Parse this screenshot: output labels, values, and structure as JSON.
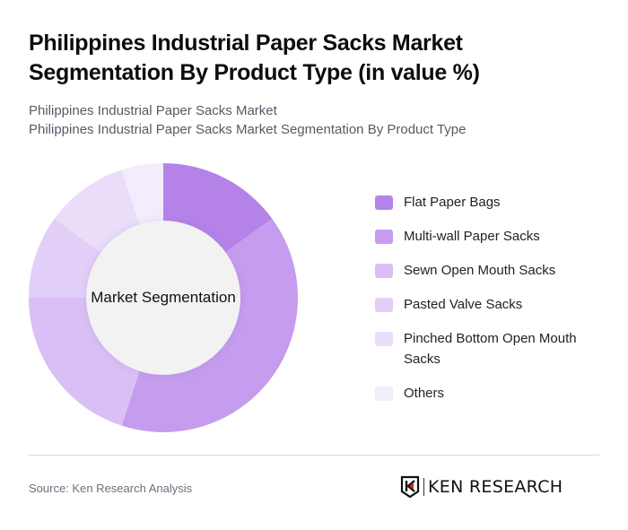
{
  "header": {
    "title": "Philippines Industrial Paper Sacks Market Segmentation By Product Type (in value %)",
    "subtitle_line1": "Philippines Industrial Paper Sacks Market",
    "subtitle_line2": "Philippines Industrial Paper Sacks Market Segmentation By Product Type"
  },
  "chart": {
    "center_label": "Market Segmentation"
  },
  "legend": {
    "items": [
      {
        "label": "Flat Paper Bags",
        "color": "#B583E8"
      },
      {
        "label": "Multi-wall Paper Sacks",
        "color": "#C59CEE"
      },
      {
        "label": "Sewn Open Mouth Sacks",
        "color": "#D9BFF5"
      },
      {
        "label": "Pasted Valve Sacks",
        "color": "#E2CFF7"
      },
      {
        "label": "Pinched Bottom Open Mouth Sacks",
        "color": "#EADDFA"
      },
      {
        "label": "Others",
        "color": "#F3ECFC"
      }
    ]
  },
  "footer": {
    "source": "Source: Ken Research Analysis",
    "logo_text": "KEN RESEARCH",
    "logo_accent": "#D62828"
  },
  "chart_data": {
    "type": "pie",
    "subtype": "donut",
    "title": "Philippines Industrial Paper Sacks Market Segmentation By Product Type (in value %)",
    "center_label": "Market Segmentation",
    "categories": [
      "Flat Paper Bags",
      "Multi-wall Paper Sacks",
      "Sewn Open Mouth Sacks",
      "Pasted Valve Sacks",
      "Pinched Bottom Open Mouth Sacks",
      "Others"
    ],
    "values": [
      15,
      40,
      20,
      10,
      10,
      5
    ],
    "colors": [
      "#B583E8",
      "#C59CEE",
      "#D9BFF5",
      "#E2CFF7",
      "#EADDFA",
      "#F3ECFC"
    ],
    "unit": "%",
    "start_angle": "12 o'clock, clockwise",
    "legend_position": "right"
  }
}
